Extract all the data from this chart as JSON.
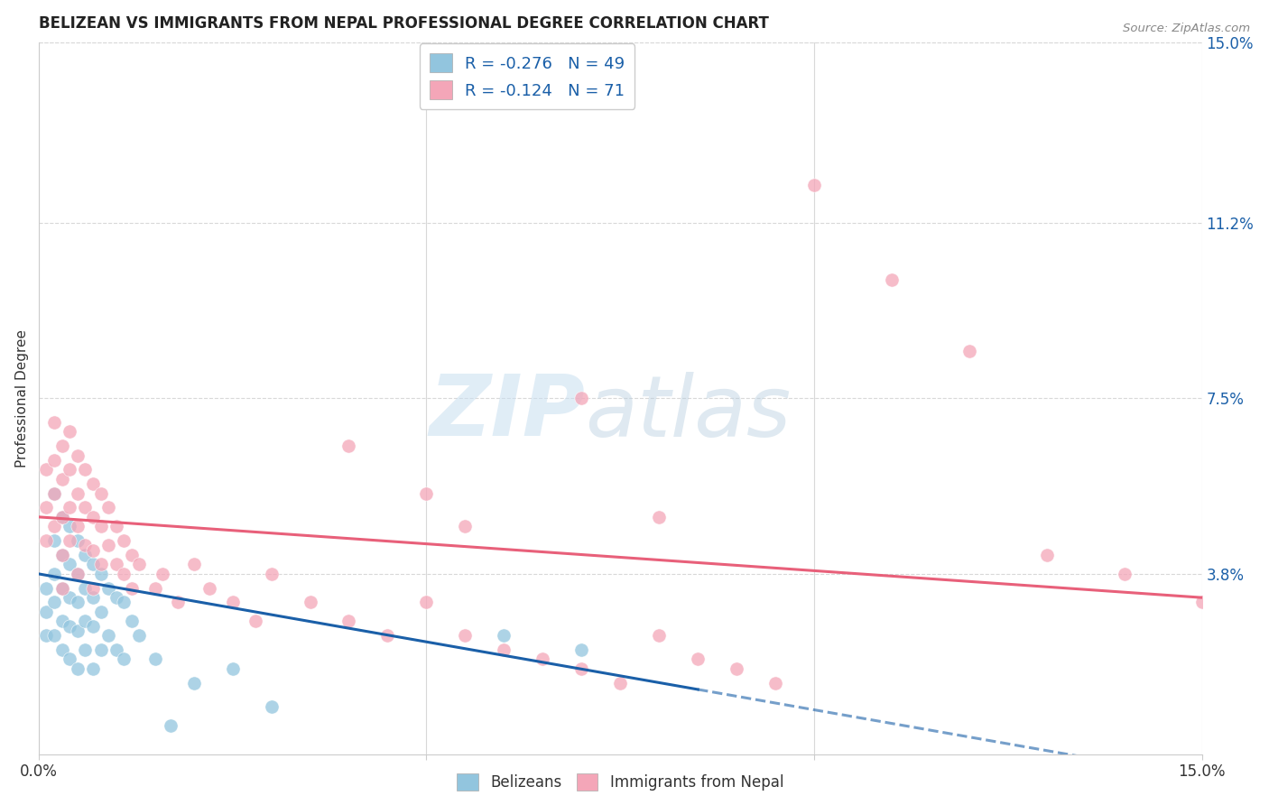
{
  "title": "BELIZEAN VS IMMIGRANTS FROM NEPAL PROFESSIONAL DEGREE CORRELATION CHART",
  "source": "Source: ZipAtlas.com",
  "ylabel": "Professional Degree",
  "xlim": [
    0.0,
    0.15
  ],
  "ylim": [
    0.0,
    0.15
  ],
  "ytick_labels_right": [
    "15.0%",
    "11.2%",
    "7.5%",
    "3.8%"
  ],
  "ytick_positions_right": [
    0.15,
    0.112,
    0.075,
    0.038
  ],
  "color_blue": "#92c5de",
  "color_pink": "#f4a6b8",
  "color_blue_line": "#1a5fa8",
  "color_pink_line": "#e8607a",
  "color_blue_text": "#1a5fa8",
  "color_pink_text": "#e8607a",
  "watermark_zip": "ZIP",
  "watermark_atlas": "atlas",
  "bg_color": "#ffffff",
  "grid_color": "#d8d8d8",
  "blue_scatter_x": [
    0.001,
    0.001,
    0.001,
    0.002,
    0.002,
    0.002,
    0.002,
    0.002,
    0.003,
    0.003,
    0.003,
    0.003,
    0.003,
    0.004,
    0.004,
    0.004,
    0.004,
    0.004,
    0.005,
    0.005,
    0.005,
    0.005,
    0.005,
    0.006,
    0.006,
    0.006,
    0.006,
    0.007,
    0.007,
    0.007,
    0.007,
    0.008,
    0.008,
    0.008,
    0.009,
    0.009,
    0.01,
    0.01,
    0.011,
    0.011,
    0.012,
    0.013,
    0.015,
    0.017,
    0.02,
    0.025,
    0.03,
    0.06,
    0.07
  ],
  "blue_scatter_y": [
    0.035,
    0.03,
    0.025,
    0.055,
    0.045,
    0.038,
    0.032,
    0.025,
    0.05,
    0.042,
    0.035,
    0.028,
    0.022,
    0.048,
    0.04,
    0.033,
    0.027,
    0.02,
    0.045,
    0.038,
    0.032,
    0.026,
    0.018,
    0.042,
    0.035,
    0.028,
    0.022,
    0.04,
    0.033,
    0.027,
    0.018,
    0.038,
    0.03,
    0.022,
    0.035,
    0.025,
    0.033,
    0.022,
    0.032,
    0.02,
    0.028,
    0.025,
    0.02,
    0.006,
    0.015,
    0.018,
    0.01,
    0.025,
    0.022
  ],
  "pink_scatter_x": [
    0.001,
    0.001,
    0.001,
    0.002,
    0.002,
    0.002,
    0.002,
    0.003,
    0.003,
    0.003,
    0.003,
    0.003,
    0.004,
    0.004,
    0.004,
    0.004,
    0.005,
    0.005,
    0.005,
    0.005,
    0.006,
    0.006,
    0.006,
    0.007,
    0.007,
    0.007,
    0.007,
    0.008,
    0.008,
    0.008,
    0.009,
    0.009,
    0.01,
    0.01,
    0.011,
    0.011,
    0.012,
    0.012,
    0.013,
    0.015,
    0.016,
    0.018,
    0.02,
    0.022,
    0.025,
    0.028,
    0.03,
    0.035,
    0.04,
    0.045,
    0.05,
    0.055,
    0.06,
    0.065,
    0.07,
    0.075,
    0.08,
    0.085,
    0.09,
    0.095,
    0.1,
    0.11,
    0.12,
    0.13,
    0.14,
    0.15,
    0.04,
    0.05,
    0.055,
    0.07,
    0.08
  ],
  "pink_scatter_y": [
    0.06,
    0.052,
    0.045,
    0.07,
    0.062,
    0.055,
    0.048,
    0.065,
    0.058,
    0.05,
    0.042,
    0.035,
    0.068,
    0.06,
    0.052,
    0.045,
    0.063,
    0.055,
    0.048,
    0.038,
    0.06,
    0.052,
    0.044,
    0.057,
    0.05,
    0.043,
    0.035,
    0.055,
    0.048,
    0.04,
    0.052,
    0.044,
    0.048,
    0.04,
    0.045,
    0.038,
    0.042,
    0.035,
    0.04,
    0.035,
    0.038,
    0.032,
    0.04,
    0.035,
    0.032,
    0.028,
    0.038,
    0.032,
    0.028,
    0.025,
    0.032,
    0.025,
    0.022,
    0.02,
    0.018,
    0.015,
    0.025,
    0.02,
    0.018,
    0.015,
    0.12,
    0.1,
    0.085,
    0.042,
    0.038,
    0.032,
    0.065,
    0.055,
    0.048,
    0.075,
    0.05
  ]
}
